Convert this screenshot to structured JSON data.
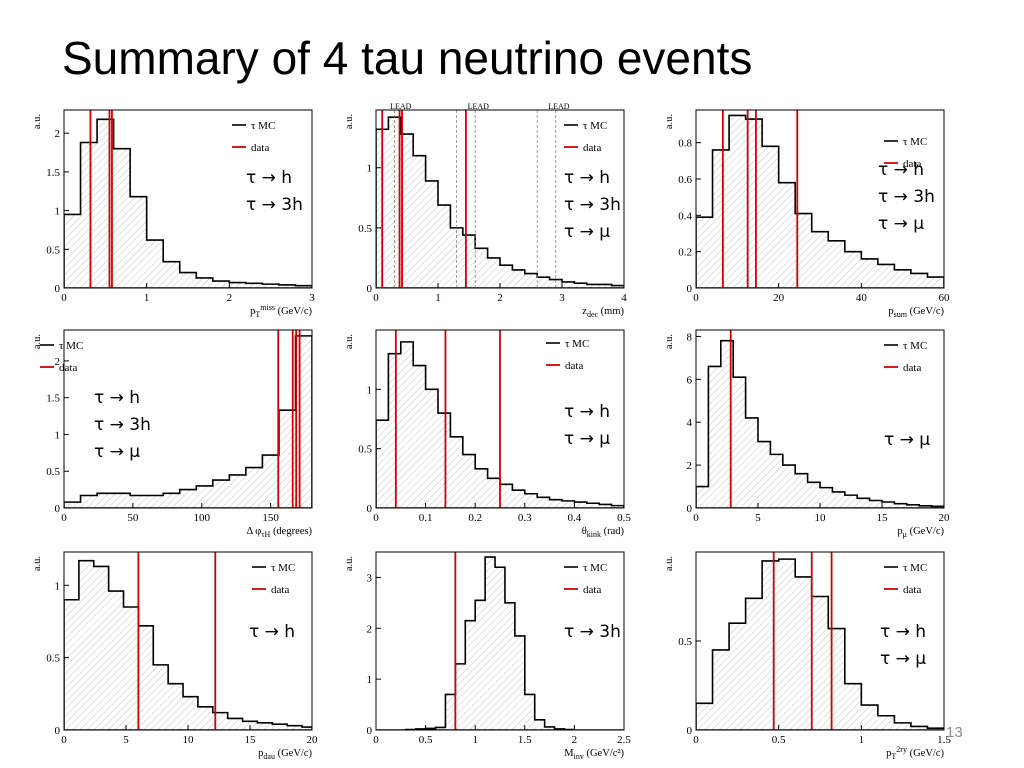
{
  "slide": {
    "title": "Summary of 4 tau neutrino events",
    "page_number": "13"
  },
  "legend": {
    "mc": "τ MC",
    "data": "data"
  },
  "colors": {
    "mc": "#000000",
    "data": "#d40000",
    "hatch": "#bdbdbd"
  },
  "chart_data": [
    {
      "type": "histogram",
      "xlabel": "p_T^miss (GeV/c)",
      "ylabel": "a.u.",
      "xlim": [
        0,
        3
      ],
      "ylim": [
        0,
        2.3
      ],
      "xticks": [
        0,
        1,
        2,
        3
      ],
      "xtick_labels": [
        "0",
        "1",
        "2",
        "3"
      ],
      "yticks": [
        0,
        0.5,
        1,
        1.5,
        2
      ],
      "ytick_labels": [
        "0",
        "0.5",
        "1",
        "1.5",
        "2"
      ],
      "bin_edges": [
        0,
        0.2,
        0.4,
        0.6,
        0.8,
        1.0,
        1.2,
        1.4,
        1.6,
        1.8,
        2.0,
        2.2,
        2.4,
        2.6,
        2.8,
        3.0
      ],
      "mc_values": [
        0.95,
        1.88,
        2.18,
        1.8,
        1.18,
        0.62,
        0.34,
        0.2,
        0.13,
        0.09,
        0.07,
        0.06,
        0.05,
        0.04,
        0.03
      ],
      "data_lines": [
        0.32,
        0.55,
        0.58
      ],
      "decay_labels": [
        "τ → h",
        "τ → 3h"
      ],
      "markers": [],
      "dashed_lines": []
    },
    {
      "type": "histogram",
      "xlabel": "z_dec (mm)",
      "ylabel": "a.u.",
      "xlim": [
        0,
        4
      ],
      "ylim": [
        0,
        1.48
      ],
      "xticks": [
        0,
        1,
        2,
        3,
        4
      ],
      "xtick_labels": [
        "0",
        "1",
        "2",
        "3",
        "4"
      ],
      "yticks": [
        0,
        0.5,
        1
      ],
      "ytick_labels": [
        "0",
        "0.5",
        "1"
      ],
      "bin_edges": [
        0,
        0.2,
        0.4,
        0.6,
        0.8,
        1.0,
        1.2,
        1.4,
        1.6,
        1.8,
        2.0,
        2.2,
        2.4,
        2.6,
        2.8,
        3.0,
        3.2,
        3.4,
        3.6,
        3.8,
        4.0
      ],
      "mc_values": [
        1.32,
        1.42,
        1.28,
        1.1,
        0.89,
        0.69,
        0.5,
        0.44,
        0.33,
        0.25,
        0.19,
        0.15,
        0.12,
        0.09,
        0.07,
        0.05,
        0.04,
        0.03,
        0.03,
        0.02
      ],
      "data_lines": [
        0.1,
        0.38,
        0.42,
        1.45
      ],
      "decay_labels": [
        "τ → h",
        "τ → 3h",
        "τ → μ"
      ],
      "markers": [
        {
          "label": "LEAD",
          "x": 0.4
        },
        {
          "label": "LEAD",
          "x": 1.65
        },
        {
          "label": "LEAD",
          "x": 2.95
        }
      ],
      "dashed_lines": [
        0.3,
        1.3,
        1.6,
        2.6,
        2.9
      ]
    },
    {
      "type": "histogram",
      "xlabel": "p_sum (GeV/c)",
      "ylabel": "a.u.",
      "xlim": [
        0,
        60
      ],
      "ylim": [
        0,
        0.98
      ],
      "xticks": [
        0,
        20,
        40,
        60
      ],
      "xtick_labels": [
        "0",
        "20",
        "40",
        "60"
      ],
      "yticks": [
        0,
        0.2,
        0.4,
        0.6,
        0.8
      ],
      "ytick_labels": [
        "0",
        "0.2",
        "0.4",
        "0.6",
        "0.8"
      ],
      "bin_edges": [
        0,
        4,
        8,
        12,
        16,
        20,
        24,
        28,
        32,
        36,
        40,
        44,
        48,
        52,
        56,
        60
      ],
      "mc_values": [
        0.39,
        0.76,
        0.95,
        0.93,
        0.78,
        0.58,
        0.41,
        0.31,
        0.26,
        0.2,
        0.16,
        0.13,
        0.1,
        0.08,
        0.06
      ],
      "data_lines": [
        6.5,
        12.5,
        14.5,
        24.5
      ],
      "decay_labels": [
        "τ → h",
        "τ → 3h",
        "τ → μ"
      ],
      "markers": [],
      "dashed_lines": []
    },
    {
      "type": "histogram",
      "xlabel": "Δ φ_τH (degrees)",
      "ylabel": "a.u.",
      "xlim": [
        0,
        180
      ],
      "ylim": [
        0,
        2.42
      ],
      "xticks": [
        0,
        50,
        100,
        150
      ],
      "xtick_labels": [
        "0",
        "50",
        "100",
        "150"
      ],
      "yticks": [
        0,
        0.5,
        1,
        1.5,
        2
      ],
      "ytick_labels": [
        "0",
        "0.5",
        "1",
        "1.5",
        "2"
      ],
      "bin_edges": [
        0,
        12,
        24,
        36,
        48,
        60,
        72,
        84,
        96,
        108,
        120,
        132,
        144,
        156,
        168,
        180
      ],
      "mc_values": [
        0.08,
        0.17,
        0.2,
        0.2,
        0.17,
        0.17,
        0.2,
        0.25,
        0.3,
        0.38,
        0.45,
        0.55,
        0.72,
        1.33,
        2.34
      ],
      "data_lines": [
        155.5,
        166,
        168.5,
        171
      ],
      "decay_labels": [
        "τ → h",
        "τ → 3h",
        "τ → μ"
      ],
      "markers": [],
      "dashed_lines": []
    },
    {
      "type": "histogram",
      "xlabel": "θ_kink (rad)",
      "ylabel": "a.u.",
      "xlim": [
        0,
        0.5
      ],
      "ylim": [
        0,
        1.5
      ],
      "xticks": [
        0,
        0.1,
        0.2,
        0.3,
        0.4,
        0.5
      ],
      "xtick_labels": [
        "0",
        "0.1",
        "0.2",
        "0.3",
        "0.4",
        "0.5"
      ],
      "yticks": [
        0,
        0.5,
        1
      ],
      "ytick_labels": [
        "0",
        "0.5",
        "1"
      ],
      "bin_edges": [
        0,
        0.025,
        0.05,
        0.075,
        0.1,
        0.125,
        0.15,
        0.175,
        0.2,
        0.225,
        0.25,
        0.275,
        0.3,
        0.325,
        0.35,
        0.375,
        0.4,
        0.425,
        0.45,
        0.475,
        0.5
      ],
      "mc_values": [
        0.74,
        1.3,
        1.4,
        1.2,
        1.0,
        0.8,
        0.6,
        0.45,
        0.33,
        0.25,
        0.2,
        0.15,
        0.12,
        0.09,
        0.07,
        0.06,
        0.05,
        0.04,
        0.03,
        0.02
      ],
      "data_lines": [
        0.04,
        0.14,
        0.25
      ],
      "decay_labels": [
        "τ → h",
        "τ → μ"
      ],
      "markers": [],
      "dashed_lines": []
    },
    {
      "type": "histogram",
      "xlabel": "p_μ (GeV/c)",
      "ylabel": "a.u.",
      "xlim": [
        0,
        20
      ],
      "ylim": [
        0,
        8.3
      ],
      "xticks": [
        0,
        5,
        10,
        15,
        20
      ],
      "xtick_labels": [
        "0",
        "5",
        "10",
        "15",
        "20"
      ],
      "yticks": [
        0,
        2,
        4,
        6,
        8
      ],
      "ytick_labels": [
        "0",
        "2",
        "4",
        "6",
        "8"
      ],
      "bin_edges": [
        0,
        1,
        2,
        3,
        4,
        5,
        6,
        7,
        8,
        9,
        10,
        11,
        12,
        13,
        14,
        15,
        16,
        17,
        18,
        19,
        20
      ],
      "mc_values": [
        1.0,
        6.6,
        7.8,
        6.1,
        4.2,
        3.1,
        2.5,
        2.0,
        1.6,
        1.2,
        0.95,
        0.75,
        0.6,
        0.45,
        0.35,
        0.28,
        0.2,
        0.15,
        0.1,
        0.08
      ],
      "data_lines": [
        2.8
      ],
      "decay_labels": [
        "τ → μ"
      ],
      "markers": [],
      "dashed_lines": []
    },
    {
      "type": "histogram",
      "xlabel": "p_dau (GeV/c)",
      "ylabel": "a.u.",
      "xlim": [
        0,
        20
      ],
      "ylim": [
        0,
        1.23
      ],
      "xticks": [
        0,
        5,
        10,
        15,
        20
      ],
      "xtick_labels": [
        "0",
        "5",
        "10",
        "15",
        "20"
      ],
      "yticks": [
        0,
        0.5,
        1
      ],
      "ytick_labels": [
        "0",
        "0.5",
        "1"
      ],
      "bin_edges": [
        0,
        1.2,
        2.4,
        3.6,
        4.8,
        6.0,
        7.2,
        8.4,
        9.6,
        10.8,
        12.0,
        13.2,
        14.4,
        15.6,
        16.8,
        18.0,
        19.2,
        20.0
      ],
      "mc_values": [
        0.9,
        1.17,
        1.13,
        0.96,
        0.85,
        0.72,
        0.45,
        0.32,
        0.23,
        0.16,
        0.12,
        0.08,
        0.06,
        0.05,
        0.04,
        0.03,
        0.02
      ],
      "data_lines": [
        6.0,
        12.2
      ],
      "decay_labels": [
        "τ → h"
      ],
      "markers": [],
      "dashed_lines": []
    },
    {
      "type": "histogram",
      "xlabel": "M_inv (GeV/c²)",
      "ylabel": "a.u.",
      "xlim": [
        0,
        2.5
      ],
      "ylim": [
        0,
        3.5
      ],
      "xticks": [
        0,
        0.5,
        1,
        1.5,
        2,
        2.5
      ],
      "xtick_labels": [
        "0",
        "0.5",
        "1",
        "1.5",
        "2",
        "2.5"
      ],
      "yticks": [
        0,
        1,
        2,
        3
      ],
      "ytick_labels": [
        "0",
        "1",
        "2",
        "3"
      ],
      "bin_edges": [
        0,
        0.1,
        0.2,
        0.3,
        0.4,
        0.5,
        0.6,
        0.7,
        0.8,
        0.9,
        1.0,
        1.1,
        1.2,
        1.3,
        1.4,
        1.5,
        1.6,
        1.7,
        1.8,
        1.9,
        2.0,
        2.1,
        2.2,
        2.3,
        2.4,
        2.5
      ],
      "mc_values": [
        0,
        0,
        0,
        0.01,
        0.02,
        0.03,
        0.05,
        0.7,
        1.3,
        2.15,
        2.55,
        3.4,
        3.2,
        2.5,
        1.85,
        0.7,
        0.2,
        0.06,
        0.02,
        0.01,
        0,
        0,
        0,
        0,
        0
      ],
      "data_lines": [
        0.8
      ],
      "decay_labels": [
        "τ → 3h"
      ],
      "markers": [],
      "dashed_lines": []
    },
    {
      "type": "histogram",
      "xlabel": "p_T^2ry (GeV/c)",
      "ylabel": "a.u.",
      "xlim": [
        0,
        1.5
      ],
      "ylim": [
        0,
        1.0
      ],
      "xticks": [
        0,
        0.5,
        1,
        1.5
      ],
      "xtick_labels": [
        "0",
        "0.5",
        "1",
        "1.5"
      ],
      "yticks": [
        0,
        0.5
      ],
      "ytick_labels": [
        "0",
        "0.5"
      ],
      "bin_edges": [
        0,
        0.1,
        0.2,
        0.3,
        0.4,
        0.5,
        0.6,
        0.7,
        0.8,
        0.9,
        1.0,
        1.1,
        1.2,
        1.3,
        1.4,
        1.5
      ],
      "mc_values": [
        0.15,
        0.45,
        0.6,
        0.74,
        0.95,
        0.96,
        0.86,
        0.75,
        0.57,
        0.26,
        0.14,
        0.08,
        0.04,
        0.02,
        0.01
      ],
      "data_lines": [
        0.47,
        0.7,
        0.82
      ],
      "decay_labels": [
        "τ → h",
        "τ → μ"
      ],
      "markers": [],
      "dashed_lines": []
    }
  ]
}
